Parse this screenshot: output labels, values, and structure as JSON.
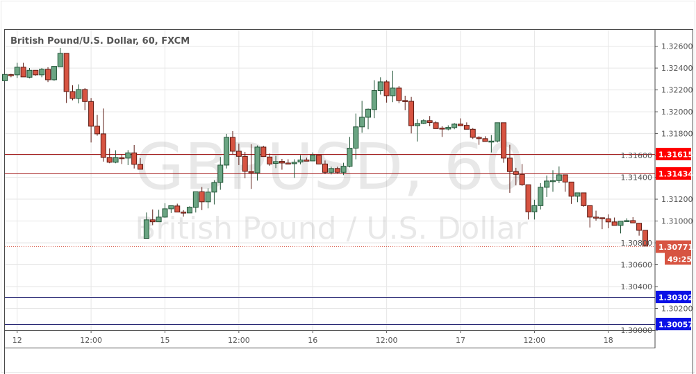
{
  "chart_data": {
    "type": "candlestick",
    "title": "British Pound/U.S. Dollar, 60, FXCM",
    "watermark": {
      "symbol": "GBPUSD, 60",
      "description": "British Pound / U.S. Dollar"
    },
    "ylim": [
      1.3,
      1.3275
    ],
    "grid": true,
    "yticks": [
      "1.32600",
      "1.32400",
      "1.32200",
      "1.32000",
      "1.31800",
      "1.31600",
      "1.31400",
      "1.31200",
      "1.31000",
      "1.30800",
      "1.30600",
      "1.30400",
      "1.30200",
      "1.30000"
    ],
    "xticks": [
      {
        "label": "12",
        "index": 2
      },
      {
        "label": "12:00",
        "index": 14
      },
      {
        "label": "15",
        "index": 26
      },
      {
        "label": "12:00",
        "index": 38
      },
      {
        "label": "16",
        "index": 50
      },
      {
        "label": "12:00",
        "index": 62
      },
      {
        "label": "17",
        "index": 74
      },
      {
        "label": "12:00",
        "index": 86
      },
      {
        "label": "18",
        "index": 98
      }
    ],
    "ohlc_fields": [
      "open",
      "high",
      "low",
      "close"
    ],
    "candles": [
      [
        1.32284,
        1.32342,
        1.32284,
        1.32342
      ],
      [
        1.3234,
        1.32348,
        1.32316,
        1.32338
      ],
      [
        1.32338,
        1.32448,
        1.3231,
        1.32408
      ],
      [
        1.32408,
        1.32448,
        1.32319,
        1.32319
      ],
      [
        1.32316,
        1.32401,
        1.32306,
        1.3238
      ],
      [
        1.3238,
        1.3238,
        1.32331,
        1.32338
      ],
      [
        1.32338,
        1.32401,
        1.32316,
        1.32389
      ],
      [
        1.32389,
        1.32408,
        1.32272,
        1.32293
      ],
      [
        1.32293,
        1.32416,
        1.32284,
        1.32416
      ],
      [
        1.32411,
        1.32585,
        1.32411,
        1.32535
      ],
      [
        1.32535,
        1.32535,
        1.32081,
        1.32185
      ],
      [
        1.32185,
        1.32243,
        1.32105,
        1.32122
      ],
      [
        1.32122,
        1.32251,
        1.32077,
        1.32204
      ],
      [
        1.32204,
        1.32217,
        1.32014,
        1.32094
      ],
      [
        1.32094,
        1.32126,
        1.31719,
        1.31868
      ],
      [
        1.31868,
        1.31971,
        1.31781,
        1.31798
      ],
      [
        1.31798,
        1.3203,
        1.31544,
        1.31582
      ],
      [
        1.31582,
        1.31665,
        1.31529,
        1.31538
      ],
      [
        1.31538,
        1.31648,
        1.31529,
        1.31582
      ],
      [
        1.3158,
        1.31608,
        1.31522,
        1.31578
      ],
      [
        1.31576,
        1.31649,
        1.31512,
        1.31624
      ],
      [
        1.31624,
        1.31696,
        1.31481,
        1.31519
      ],
      [
        1.31519,
        1.31576,
        1.31474,
        1.31474
      ],
      [
        1.30841,
        1.31078,
        1.30841,
        1.31011
      ],
      [
        1.31011,
        1.31106,
        1.30962,
        1.30993
      ],
      [
        1.30993,
        1.31103,
        1.30993,
        1.31036
      ],
      [
        1.31036,
        1.31163,
        1.3103,
        1.31112
      ],
      [
        1.31112,
        1.3114,
        1.31074,
        1.3114
      ],
      [
        1.31138,
        1.31159,
        1.31082,
        1.31082
      ],
      [
        1.31082,
        1.311,
        1.3104,
        1.31074
      ],
      [
        1.31074,
        1.31135,
        1.31074,
        1.31127
      ],
      [
        1.31125,
        1.31268,
        1.31078,
        1.31268
      ],
      [
        1.31268,
        1.31311,
        1.311,
        1.31176
      ],
      [
        1.31176,
        1.313,
        1.31116,
        1.31265
      ],
      [
        1.31265,
        1.31374,
        1.31152,
        1.31353
      ],
      [
        1.31353,
        1.31586,
        1.31286,
        1.31512
      ],
      [
        1.31512,
        1.31798,
        1.31481,
        1.31766
      ],
      [
        1.31766,
        1.31823,
        1.31611,
        1.31639
      ],
      [
        1.31639,
        1.31709,
        1.31512,
        1.31592
      ],
      [
        1.31592,
        1.31633,
        1.31392,
        1.31455
      ],
      [
        1.31455,
        1.31703,
        1.31294,
        1.31442
      ],
      [
        1.31442,
        1.31692,
        1.3137,
        1.31677
      ],
      [
        1.31677,
        1.31688,
        1.3159,
        1.3159
      ],
      [
        1.31586,
        1.31618,
        1.31506,
        1.31522
      ],
      [
        1.31527,
        1.31597,
        1.31484,
        1.31544
      ],
      [
        1.31546,
        1.31569,
        1.3147,
        1.31531
      ],
      [
        1.31531,
        1.31565,
        1.31525,
        1.31525
      ],
      [
        1.31525,
        1.31565,
        1.31395,
        1.31538
      ],
      [
        1.3154,
        1.31603,
        1.31519,
        1.31559
      ],
      [
        1.31559,
        1.3158,
        1.31548,
        1.31548
      ],
      [
        1.3155,
        1.31628,
        1.3155,
        1.31603
      ],
      [
        1.31603,
        1.31603,
        1.31519,
        1.31522
      ],
      [
        1.31522,
        1.31554,
        1.31434,
        1.31446
      ],
      [
        1.31446,
        1.31497,
        1.31427,
        1.31481
      ],
      [
        1.31481,
        1.31497,
        1.31438,
        1.31446
      ],
      [
        1.31446,
        1.31533,
        1.31421,
        1.31501
      ],
      [
        1.31501,
        1.3177,
        1.31491,
        1.31667
      ],
      [
        1.31667,
        1.31984,
        1.31565,
        1.31862
      ],
      [
        1.31862,
        1.321,
        1.31808,
        1.3195
      ],
      [
        1.3195,
        1.3203,
        1.3184,
        1.32024
      ],
      [
        1.3202,
        1.32289,
        1.31942,
        1.32194
      ],
      [
        1.32194,
        1.32316,
        1.32157,
        1.32274
      ],
      [
        1.32274,
        1.32291,
        1.32084,
        1.32147
      ],
      [
        1.32147,
        1.32376,
        1.32088,
        1.32217
      ],
      [
        1.32217,
        1.32236,
        1.32079,
        1.32103
      ],
      [
        1.32103,
        1.32147,
        1.32014,
        1.32096
      ],
      [
        1.32096,
        1.32136,
        1.31802,
        1.31872
      ],
      [
        1.31872,
        1.31931,
        1.31728,
        1.31893
      ],
      [
        1.31893,
        1.31931,
        1.31887,
        1.31919
      ],
      [
        1.31919,
        1.31961,
        1.31868,
        1.31902
      ],
      [
        1.319,
        1.31914,
        1.31846,
        1.31846
      ],
      [
        1.31851,
        1.31868,
        1.3177,
        1.31842
      ],
      [
        1.31842,
        1.31876,
        1.3183,
        1.31857
      ],
      [
        1.31855,
        1.31897,
        1.3184,
        1.31887
      ],
      [
        1.31887,
        1.3194,
        1.31868,
        1.31872
      ],
      [
        1.31876,
        1.31903,
        1.3184,
        1.3184
      ],
      [
        1.3184,
        1.31851,
        1.31751,
        1.31766
      ],
      [
        1.31766,
        1.31776,
        1.31698,
        1.31754
      ],
      [
        1.31754,
        1.31776,
        1.31728,
        1.31728
      ],
      [
        1.31728,
        1.31787,
        1.31628,
        1.31732
      ],
      [
        1.31732,
        1.319,
        1.31719,
        1.319
      ],
      [
        1.319,
        1.319,
        1.31533,
        1.31576
      ],
      [
        1.31576,
        1.31698,
        1.31258,
        1.31453
      ],
      [
        1.31453,
        1.31487,
        1.31326,
        1.31427
      ],
      [
        1.31427,
        1.31522,
        1.31322,
        1.31332
      ],
      [
        1.31332,
        1.31332,
        1.31014,
        1.31084
      ],
      [
        1.31084,
        1.31195,
        1.31014,
        1.31141
      ],
      [
        1.31141,
        1.31347,
        1.31106,
        1.31309
      ],
      [
        1.31309,
        1.31417,
        1.3122,
        1.31366
      ],
      [
        1.31366,
        1.31465,
        1.31268,
        1.3137
      ],
      [
        1.3137,
        1.315,
        1.31347,
        1.31423
      ],
      [
        1.31423,
        1.31423,
        1.31268,
        1.31357
      ],
      [
        1.31357,
        1.31357,
        1.31157,
        1.31227
      ],
      [
        1.31227,
        1.31258,
        1.31173,
        1.31258
      ],
      [
        1.31258,
        1.31258,
        1.31131,
        1.31141
      ],
      [
        1.31141,
        1.31141,
        1.30941,
        1.31036
      ],
      [
        1.31036,
        1.31095,
        1.31004,
        1.3103
      ],
      [
        1.3103,
        1.3103,
        1.30926,
        1.31021
      ],
      [
        1.31021,
        1.31061,
        1.30934,
        1.30992
      ],
      [
        1.30992,
        1.31032,
        1.3096,
        1.3096
      ],
      [
        1.3096,
        1.30998,
        1.30887,
        1.30998
      ],
      [
        1.30998,
        1.31025,
        1.30998,
        1.31004
      ],
      [
        1.31004,
        1.31036,
        1.30983,
        1.30983
      ],
      [
        1.3098,
        1.30983,
        1.30866,
        1.30915
      ],
      [
        1.30915,
        1.30915,
        1.30771,
        1.30771
      ]
    ],
    "horizontal_lines": [
      {
        "value": 1.31615,
        "label": "1.31615",
        "color": "#a31b1b",
        "badge_color": "#ff0000"
      },
      {
        "value": 1.31434,
        "label": "1.31434",
        "color": "#a31b1b",
        "badge_color": "#ff0000"
      },
      {
        "value": 1.30302,
        "label": "1.30302",
        "color": "#1b1b6b",
        "badge_color": "#0b11e6"
      },
      {
        "value": 1.30057,
        "label": "1.30057",
        "color": "#1b1b6b",
        "badge_color": "#0b11e6"
      }
    ],
    "last_price": {
      "value": 1.30771,
      "label": "1.30771",
      "countdown": "49:25",
      "color": "#d75442"
    },
    "colors": {
      "up": "#6ba583",
      "down": "#d75442",
      "up_border": "#225437",
      "down_border": "#5b1a13",
      "grid": "#e6e6e6"
    }
  }
}
